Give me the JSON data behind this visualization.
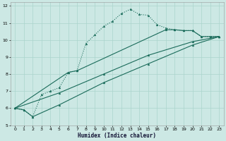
{
  "xlabel": "Humidex (Indice chaleur)",
  "bg_color": "#cce8e4",
  "grid_color": "#aad4cc",
  "line_color": "#1a6b5a",
  "xlim": [
    -0.5,
    23.5
  ],
  "ylim": [
    5,
    12.2
  ],
  "xticks": [
    0,
    1,
    2,
    3,
    4,
    5,
    6,
    7,
    8,
    9,
    10,
    11,
    12,
    13,
    14,
    15,
    16,
    17,
    18,
    19,
    20,
    21,
    22,
    23
  ],
  "yticks": [
    5,
    6,
    7,
    8,
    9,
    10,
    11,
    12
  ],
  "line1_dotted": {
    "x": [
      0,
      1,
      2,
      3,
      4,
      5,
      6,
      7,
      8,
      9,
      10,
      11,
      12,
      13,
      14,
      15,
      16,
      17,
      18,
      19,
      20,
      21,
      22,
      23
    ],
    "y": [
      6.0,
      5.9,
      5.5,
      6.8,
      7.0,
      7.2,
      8.1,
      8.2,
      9.8,
      10.3,
      10.8,
      11.1,
      11.55,
      11.8,
      11.5,
      11.45,
      10.9,
      10.7,
      10.6,
      10.55,
      10.55,
      10.2,
      10.2,
      10.2
    ]
  },
  "line2_solid": {
    "x": [
      0,
      6,
      7,
      17,
      18,
      19,
      20,
      21,
      22,
      23
    ],
    "y": [
      6.0,
      8.1,
      8.2,
      10.6,
      10.6,
      10.55,
      10.55,
      10.2,
      10.2,
      10.2
    ]
  },
  "line3_solid": {
    "x": [
      0,
      5,
      10,
      15,
      20,
      23
    ],
    "y": [
      6.0,
      6.9,
      8.0,
      9.1,
      9.9,
      10.2
    ]
  },
  "line4_solid": {
    "x": [
      0,
      1,
      2,
      5,
      10,
      15,
      20,
      23
    ],
    "y": [
      6.0,
      5.9,
      5.5,
      6.2,
      7.5,
      8.6,
      9.7,
      10.2
    ]
  }
}
